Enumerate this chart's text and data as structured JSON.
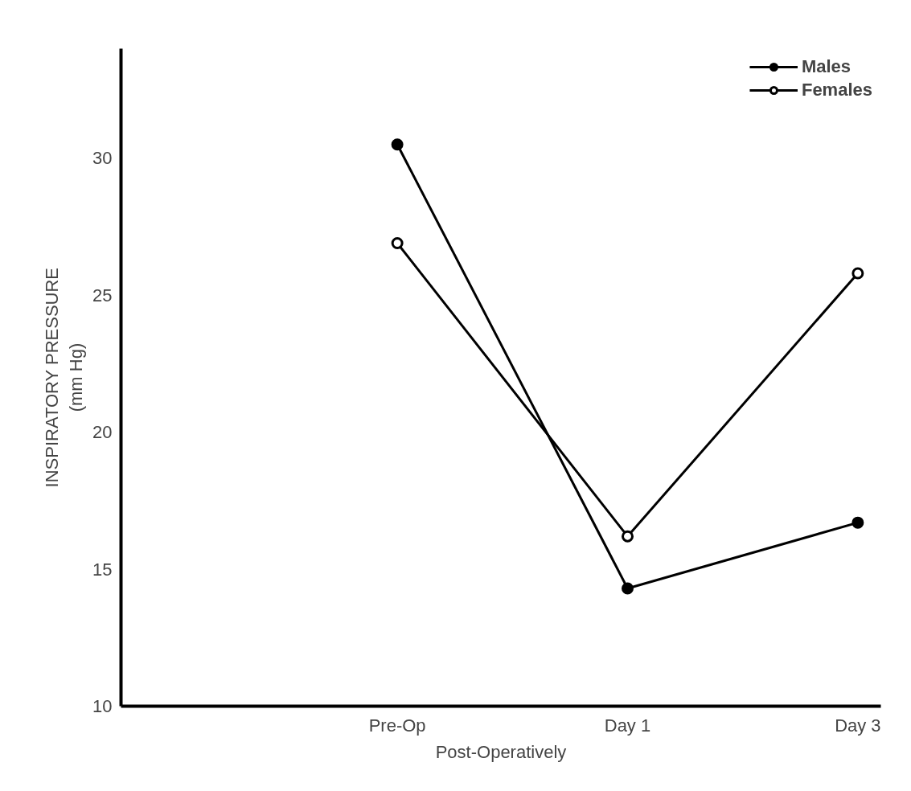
{
  "chart_data": {
    "type": "line",
    "xlabel": "Post-Operatively",
    "ylabel": "INSPIRATORY PRESSURE\n(mm Hg)",
    "categories": [
      "Pre-Op",
      "Day 1",
      "Day 3"
    ],
    "ylim": [
      10,
      34
    ],
    "yticks": [
      10,
      15,
      20,
      25,
      30
    ],
    "series": [
      {
        "name": "Males",
        "color": "#000000",
        "values": [
          30.5,
          14.3,
          16.7
        ]
      },
      {
        "name": "Females",
        "color": "#000000",
        "values": [
          26.9,
          16.2,
          25.8
        ]
      }
    ],
    "marker": "circle",
    "line_style": "solid",
    "grid": false,
    "legend": "top right"
  }
}
